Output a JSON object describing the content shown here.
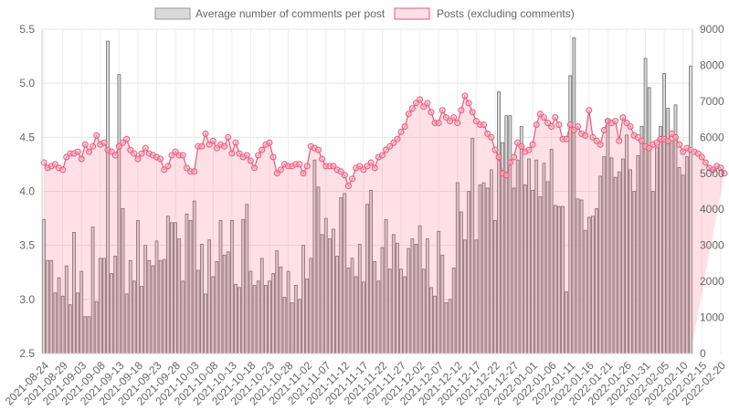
{
  "chart_data": {
    "type": "bar",
    "legend": {
      "placement": "top-center"
    },
    "grid": true,
    "series": [
      {
        "name": "Average number of comments per post",
        "type": "bar",
        "axis": "left",
        "fill": "#d9d9d9",
        "stroke": "#6e6e6e",
        "values": [
          3.74,
          3.36,
          3.36,
          3.06,
          3.2,
          3.03,
          3.31,
          2.95,
          3.62,
          3.06,
          3.26,
          2.84,
          2.84,
          3.67,
          2.98,
          3.38,
          3.38,
          5.39,
          3.24,
          3.4,
          5.08,
          3.84,
          3.05,
          3.36,
          3.17,
          3.73,
          3.12,
          3.5,
          3.36,
          3.31,
          3.54,
          3.36,
          3.37,
          3.77,
          3.71,
          3.71,
          3.56,
          3.17,
          3.79,
          3.73,
          3.91,
          3.27,
          3.51,
          3.05,
          3.55,
          3.21,
          3.35,
          3.73,
          3.41,
          3.44,
          3.73,
          3.14,
          3.11,
          3.74,
          3.88,
          3.26,
          3.13,
          3.17,
          3.38,
          3.13,
          3.17,
          3.24,
          3.45,
          3.3,
          3.02,
          3.26,
          2.97,
          3.13,
          3.0,
          3.5,
          3.19,
          3.38,
          4.29,
          4.04,
          3.6,
          3.75,
          3.56,
          3.65,
          3.4,
          3.94,
          3.98,
          3.29,
          3.38,
          3.21,
          3.51,
          3.16,
          3.88,
          4.01,
          3.35,
          3.17,
          3.48,
          3.74,
          3.28,
          3.6,
          3.52,
          3.28,
          3.21,
          3.47,
          3.56,
          3.51,
          3.68,
          3.28,
          3.56,
          3.11,
          3.03,
          3.63,
          3.41,
          2.97,
          3.0,
          3.29,
          4.08,
          3.81,
          3.55,
          4.0,
          4.49,
          3.55,
          4.06,
          4.08,
          4.03,
          4.2,
          3.73,
          4.92,
          4.45,
          4.7,
          4.7,
          4.03,
          4.29,
          4.6,
          4.06,
          4.3,
          4.01,
          4.29,
          3.95,
          4.26,
          4.09,
          4.39,
          3.87,
          3.86,
          3.86,
          3.07,
          5.07,
          5.42,
          3.93,
          3.92,
          3.64,
          3.76,
          3.77,
          3.84,
          4.14,
          4.32,
          4.67,
          4.31,
          4.13,
          4.18,
          4.3,
          4.52,
          4.2,
          4.0,
          4.33,
          4.6,
          5.23,
          4.96,
          4.0,
          4.41,
          4.6,
          5.09,
          4.77,
          4.47,
          4.8,
          4.22,
          4.15,
          4.32,
          5.16
        ]
      },
      {
        "name": "Posts (excluding comments)",
        "type": "area",
        "axis": "right",
        "fill": "rgba(255,99,132,0.2)",
        "stroke": "#e8597a",
        "values": [
          5300,
          5150,
          5200,
          5250,
          5150,
          5100,
          5450,
          5550,
          5550,
          5600,
          5400,
          5800,
          5600,
          5750,
          6050,
          5800,
          5850,
          5650,
          5600,
          5500,
          5750,
          5850,
          5950,
          5650,
          5550,
          5400,
          5550,
          5700,
          5550,
          5500,
          5450,
          5400,
          5100,
          5200,
          5500,
          5600,
          5500,
          5500,
          5150,
          5050,
          5050,
          5750,
          5750,
          6100,
          5800,
          5900,
          5700,
          5800,
          5750,
          6000,
          5550,
          5850,
          5550,
          5450,
          5500,
          5350,
          5150,
          5500,
          5650,
          5800,
          5850,
          5450,
          5000,
          5100,
          5250,
          5200,
          5200,
          5250,
          5250,
          5000,
          5200,
          5750,
          5700,
          5650,
          5400,
          5200,
          5200,
          5200,
          5100,
          5050,
          4950,
          4650,
          4850,
          5150,
          5200,
          5100,
          5200,
          5300,
          5150,
          5450,
          5500,
          5650,
          5750,
          5850,
          5950,
          6150,
          6300,
          6650,
          6800,
          6950,
          7050,
          6850,
          6950,
          6700,
          6400,
          6400,
          6750,
          6550,
          6450,
          6550,
          6400,
          6750,
          7150,
          6950,
          6700,
          6450,
          6350,
          6350,
          6100,
          6000,
          5650,
          5450,
          5000,
          4950,
          5300,
          5450,
          5850,
          5750,
          5600,
          5650,
          5800,
          6350,
          6650,
          6550,
          6400,
          6300,
          6550,
          6350,
          5950,
          5950,
          6350,
          6200,
          6300,
          6100,
          6050,
          6750,
          6000,
          5900,
          5800,
          6200,
          6450,
          6400,
          6450,
          5900,
          6550,
          6400,
          6300,
          6050,
          6000,
          5900,
          5750,
          5700,
          5800,
          5850,
          5950,
          5950,
          5900,
          6100,
          6000,
          5800,
          5600,
          5700,
          5650,
          5600,
          5550,
          5450,
          5300,
          5150,
          5100,
          5200,
          5150,
          5000
        ]
      }
    ],
    "axes": {
      "y_left": {
        "min": 2.5,
        "max": 5.5,
        "step": 0.5,
        "ticks": [
          "2.5",
          "3.0",
          "3.5",
          "4.0",
          "4.5",
          "5.0",
          "5.5"
        ]
      },
      "y_right": {
        "min": 0,
        "max": 9000,
        "step": 1000,
        "ticks": [
          "0",
          "1000",
          "2000",
          "3000",
          "4000",
          "5000",
          "6000",
          "7000",
          "8000",
          "9000"
        ]
      },
      "x": {
        "start": "2021-08-24",
        "tick_labels": [
          "2021-08-24",
          "2021-08-29",
          "2021-09-03",
          "2021-09-08",
          "2021-09-13",
          "2021-09-18",
          "2021-09-23",
          "2021-09-28",
          "2021-10-03",
          "2021-10-08",
          "2021-10-13",
          "2021-10-18",
          "2021-10-23",
          "2021-10-28",
          "2021-11-02",
          "2021-11-07",
          "2021-11-12",
          "2021-11-17",
          "2021-11-22",
          "2021-11-27",
          "2021-12-02",
          "2021-12-07",
          "2021-12-12",
          "2021-12-17",
          "2021-12-22",
          "2021-12-27",
          "2022-01-01",
          "2022-01-06",
          "2022-01-11",
          "2022-01-16",
          "2022-01-21",
          "2022-01-26",
          "2022-01-31",
          "2022-02-05",
          "2022-02-10",
          "2022-02-15",
          "2022-02-20"
        ]
      }
    }
  }
}
